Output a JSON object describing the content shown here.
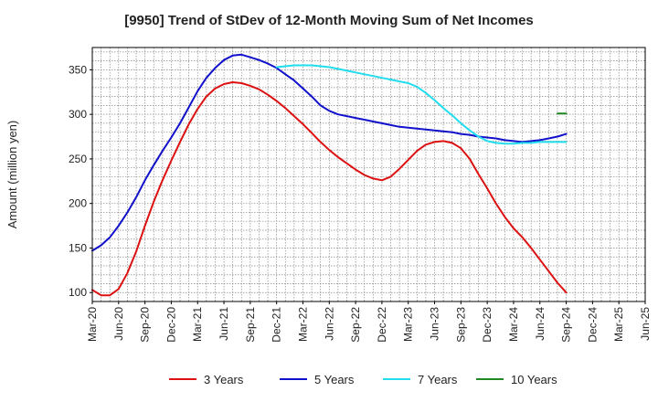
{
  "chart_data": {
    "type": "line",
    "title": "[9950]  Trend of StDev of 12-Month Moving Sum of Net Incomes",
    "xlabel": "",
    "ylabel": "Amount (million yen)",
    "ylim": [
      90,
      375
    ],
    "yticks": [
      100,
      150,
      200,
      250,
      300,
      350
    ],
    "grid": true,
    "legend_position": "bottom",
    "xticks": [
      "Mar-20",
      "Jun-20",
      "Sep-20",
      "Dec-20",
      "Mar-21",
      "Jun-21",
      "Sep-21",
      "Dec-21",
      "Mar-22",
      "Jun-22",
      "Sep-22",
      "Dec-22",
      "Mar-23",
      "Jun-23",
      "Sep-23",
      "Dec-23",
      "Mar-24",
      "Jun-24",
      "Sep-24",
      "Dec-24",
      "Mar-25",
      "Jun-25"
    ],
    "series": [
      {
        "name": "3 Years",
        "color": "#dd1111",
        "points": [
          [
            "Mar-20",
            103
          ],
          [
            "Apr-20",
            97
          ],
          [
            "May-20",
            97
          ],
          [
            "Jun-20",
            104
          ],
          [
            "Jul-20",
            122
          ],
          [
            "Aug-20",
            146
          ],
          [
            "Sep-20",
            175
          ],
          [
            "Oct-20",
            202
          ],
          [
            "Nov-20",
            226
          ],
          [
            "Dec-20",
            248
          ],
          [
            "Jan-21",
            269
          ],
          [
            "Feb-21",
            289
          ],
          [
            "Mar-21",
            306
          ],
          [
            "Apr-21",
            320
          ],
          [
            "May-21",
            329
          ],
          [
            "Jun-21",
            334
          ],
          [
            "Jul-21",
            336
          ],
          [
            "Aug-21",
            335
          ],
          [
            "Sep-21",
            332
          ],
          [
            "Oct-21",
            328
          ],
          [
            "Nov-21",
            322
          ],
          [
            "Dec-21",
            315
          ],
          [
            "Jan-22",
            307
          ],
          [
            "Feb-22",
            298
          ],
          [
            "Mar-22",
            289
          ],
          [
            "Apr-22",
            279
          ],
          [
            "May-22",
            269
          ],
          [
            "Jun-22",
            260
          ],
          [
            "Jul-22",
            252
          ],
          [
            "Aug-22",
            245
          ],
          [
            "Sep-22",
            238
          ],
          [
            "Oct-22",
            232
          ],
          [
            "Nov-22",
            228
          ],
          [
            "Dec-22",
            226
          ],
          [
            "Jan-23",
            230
          ],
          [
            "Feb-23",
            239
          ],
          [
            "Mar-23",
            249
          ],
          [
            "Apr-23",
            259
          ],
          [
            "May-23",
            266
          ],
          [
            "Jun-23",
            269
          ],
          [
            "Jul-23",
            270
          ],
          [
            "Aug-23",
            268
          ],
          [
            "Sep-23",
            262
          ],
          [
            "Oct-23",
            250
          ],
          [
            "Nov-23",
            233
          ],
          [
            "Dec-23",
            217
          ],
          [
            "Jan-24",
            200
          ],
          [
            "Feb-24",
            185
          ],
          [
            "Mar-24",
            172
          ],
          [
            "Apr-24",
            162
          ],
          [
            "May-24",
            150
          ],
          [
            "Jun-24",
            137
          ],
          [
            "Jul-24",
            124
          ],
          [
            "Aug-24",
            111
          ],
          [
            "Sep-24",
            100
          ]
        ]
      },
      {
        "name": "5 Years",
        "color": "#1111cc",
        "points": [
          [
            "Mar-20",
            147
          ],
          [
            "Apr-20",
            153
          ],
          [
            "May-20",
            162
          ],
          [
            "Jun-20",
            175
          ],
          [
            "Jul-20",
            190
          ],
          [
            "Aug-20",
            207
          ],
          [
            "Sep-20",
            226
          ],
          [
            "Oct-20",
            243
          ],
          [
            "Nov-20",
            259
          ],
          [
            "Dec-20",
            274
          ],
          [
            "Jan-21",
            290
          ],
          [
            "Feb-21",
            308
          ],
          [
            "Mar-21",
            326
          ],
          [
            "Apr-21",
            341
          ],
          [
            "May-21",
            352
          ],
          [
            "Jun-21",
            361
          ],
          [
            "Jul-21",
            366
          ],
          [
            "Aug-21",
            367
          ],
          [
            "Sep-21",
            364
          ],
          [
            "Oct-21",
            361
          ],
          [
            "Nov-21",
            357
          ],
          [
            "Dec-21",
            352
          ],
          [
            "Jan-22",
            345
          ],
          [
            "Feb-22",
            338
          ],
          [
            "Mar-22",
            329
          ],
          [
            "Apr-22",
            320
          ],
          [
            "May-22",
            310
          ],
          [
            "Jun-22",
            304
          ],
          [
            "Jul-22",
            300
          ],
          [
            "Aug-22",
            298
          ],
          [
            "Sep-22",
            296
          ],
          [
            "Oct-22",
            294
          ],
          [
            "Nov-22",
            292
          ],
          [
            "Dec-22",
            290
          ],
          [
            "Jan-23",
            288
          ],
          [
            "Feb-23",
            286
          ],
          [
            "Mar-23",
            285
          ],
          [
            "Apr-23",
            284
          ],
          [
            "May-23",
            283
          ],
          [
            "Jun-23",
            282
          ],
          [
            "Jul-23",
            281
          ],
          [
            "Aug-23",
            280
          ],
          [
            "Sep-23",
            278
          ],
          [
            "Oct-23",
            277
          ],
          [
            "Nov-23",
            275
          ],
          [
            "Dec-23",
            274
          ],
          [
            "Jan-24",
            273
          ],
          [
            "Feb-24",
            271
          ],
          [
            "Mar-24",
            270
          ],
          [
            "Apr-24",
            269
          ],
          [
            "May-24",
            270
          ],
          [
            "Jun-24",
            271
          ],
          [
            "Jul-24",
            273
          ],
          [
            "Aug-24",
            275
          ],
          [
            "Sep-24",
            278
          ]
        ]
      },
      {
        "name": "7 Years",
        "color": "#22ddee",
        "points": [
          [
            "Dec-21",
            353
          ],
          [
            "Jan-22",
            354
          ],
          [
            "Feb-22",
            355
          ],
          [
            "Mar-22",
            355
          ],
          [
            "Apr-22",
            355
          ],
          [
            "May-22",
            354
          ],
          [
            "Jun-22",
            353
          ],
          [
            "Jul-22",
            351
          ],
          [
            "Aug-22",
            349
          ],
          [
            "Sep-22",
            347
          ],
          [
            "Oct-22",
            345
          ],
          [
            "Nov-22",
            343
          ],
          [
            "Dec-22",
            341
          ],
          [
            "Jan-23",
            339
          ],
          [
            "Feb-23",
            337
          ],
          [
            "Mar-23",
            335
          ],
          [
            "Apr-23",
            331
          ],
          [
            "May-23",
            324
          ],
          [
            "Jun-23",
            316
          ],
          [
            "Jul-23",
            307
          ],
          [
            "Aug-23",
            299
          ],
          [
            "Sep-23",
            290
          ],
          [
            "Oct-23",
            282
          ],
          [
            "Nov-23",
            275
          ],
          [
            "Dec-23",
            270
          ],
          [
            "Jan-24",
            268
          ],
          [
            "Feb-24",
            267
          ],
          [
            "Mar-24",
            267
          ],
          [
            "Apr-24",
            268
          ],
          [
            "May-24",
            268
          ],
          [
            "Jun-24",
            269
          ],
          [
            "Jul-24",
            269
          ],
          [
            "Aug-24",
            269
          ],
          [
            "Sep-24",
            269
          ]
        ]
      },
      {
        "name": "10 Years",
        "color": "#228822",
        "points": [
          [
            "Aug-24",
            301
          ],
          [
            "Sep-24",
            301
          ]
        ]
      }
    ]
  }
}
